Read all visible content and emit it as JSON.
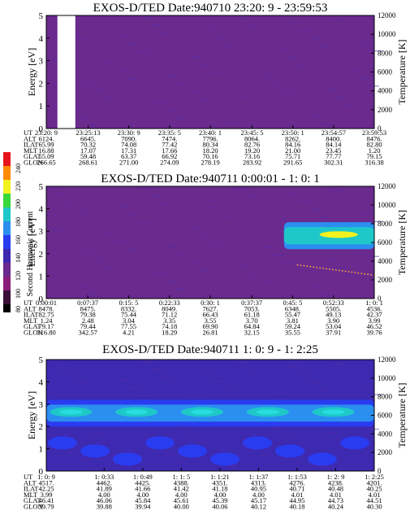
{
  "colorbar": {
    "label": "Second Harmonic Current",
    "ticks": [
      "80",
      "100",
      "120",
      "140",
      "160",
      "180",
      "200",
      "220",
      "240"
    ]
  },
  "row_labels": [
    "UT",
    "ALT",
    "ILAT",
    "MLT",
    "GLAT",
    "GLON"
  ],
  "chart_data": [
    {
      "type": "heatmap",
      "title": "EXOS-D/TED   Date:940710  23:20: 9 - 23:59:53",
      "ylabel": "Energy [eV]",
      "ylabel_right": "Temperature [K]",
      "ylim": [
        0,
        5
      ],
      "ylim_right": [
        0,
        12000
      ],
      "yticks": [
        "0",
        "1",
        "2",
        "3",
        "4",
        "5"
      ],
      "yticks_right": [
        "0",
        "2000",
        "4000",
        "6000",
        "8000",
        "10000",
        "12000"
      ],
      "columns": [
        [
          "23:20: 9",
          "6124.",
          "65.99",
          "16.88",
          "55.09",
          "266.65"
        ],
        [
          "23:25:13",
          "6645.",
          "70.32",
          "17.07",
          "59.48",
          "268.61"
        ],
        [
          "23:30: 9",
          "7090.",
          "74.08",
          "17.31",
          "63.37",
          "271.00"
        ],
        [
          "23:35: 5",
          "7474.",
          "77.42",
          "17.66",
          "66.92",
          "274.09"
        ],
        [
          "23:40: 1",
          "7796.",
          "80.34",
          "18.20",
          "70.16",
          "278.19"
        ],
        [
          "23:45: 5",
          "8064.",
          "82.76",
          "19.20",
          "73.16",
          "283.92"
        ],
        [
          "23:50: 1",
          "8262.",
          "84.16",
          "21.00",
          "75.71",
          "291.65"
        ],
        [
          "23:54:57",
          "8400.",
          "84.14",
          "23.45",
          "77.77",
          "302.31"
        ],
        [
          "23:59:53",
          "8476.",
          "82.80",
          "1.20",
          "79.15",
          "316.38"
        ]
      ],
      "features": [
        {
          "kind": "background",
          "level": 0.16
        },
        {
          "kind": "data-gap",
          "start_ut": "23:21:30",
          "end_ut": "23:23:40"
        }
      ]
    },
    {
      "type": "heatmap",
      "title": "EXOS-D/TED   Date:940711  0:00:01 - 1: 0: 1",
      "ylabel": "Energy [eV]",
      "ylabel_right": "Temperature [K]",
      "ylim": [
        0,
        5
      ],
      "ylim_right": [
        0,
        12000
      ],
      "yticks": [
        "0",
        "1",
        "2",
        "3",
        "4",
        "5"
      ],
      "yticks_right": [
        "0",
        "2000",
        "4000",
        "6000",
        "8000",
        "10000",
        "12000"
      ],
      "columns": [
        [
          "0:00:01",
          "8478.",
          "82.75",
          "1.24",
          "79.17",
          "316.80"
        ],
        [
          "0:07:37",
          "8475.",
          "79.38",
          "2.48",
          "79.44",
          "342.57"
        ],
        [
          "0:15: 5",
          "8332.",
          "75.44",
          "3.04",
          "77.55",
          "4.21"
        ],
        [
          "0:22:33",
          "8049.",
          "71.12",
          "3.35",
          "74.18",
          "18.29"
        ],
        [
          "0:30: 1",
          "7627.",
          "66.43",
          "3.55",
          "69.90",
          "26.81"
        ],
        [
          "0:37:37",
          "7053.",
          "61.18",
          "3.70",
          "64.84",
          "32.15"
        ],
        [
          "0:45: 5",
          "6348.",
          "55.47",
          "3.81",
          "59.24",
          "35.55"
        ],
        [
          "0:52:33",
          "5505.",
          "49.13",
          "3.90",
          "53.04",
          "37.91"
        ],
        [
          "1: 0: 1",
          "4536.",
          "42.37",
          "3.99",
          "46.52",
          "39.76"
        ]
      ],
      "features": [
        {
          "kind": "background",
          "level": 0.16
        },
        {
          "kind": "band",
          "start_ut": "0:43:30",
          "end_ut": "1: 0: 1",
          "energy_min": 2.2,
          "energy_max": 3.4,
          "level": 0.55
        },
        {
          "kind": "band-core",
          "start_ut": "0:50:00",
          "end_ut": "0:57:00",
          "energy_min": 2.7,
          "energy_max": 3.0,
          "level": 0.72
        },
        {
          "kind": "temperature-trace",
          "start_ut": "0:46:00",
          "end_ut": "1: 0: 1",
          "temp_start": 3600,
          "temp_end": 2500
        }
      ]
    },
    {
      "type": "heatmap",
      "title": "EXOS-D/TED   Date:940711  1: 0: 9 - 1: 2:25",
      "ylabel": "Energy [eV]",
      "ylabel_right": "Temperature [K]",
      "ylim": [
        0,
        5
      ],
      "ylim_right": [
        0,
        12000
      ],
      "yticks": [
        "0",
        "1",
        "2",
        "3",
        "4",
        "5"
      ],
      "yticks_right": [
        "0",
        "2000",
        "4000",
        "6000",
        "8000",
        "10000",
        "12000"
      ],
      "columns": [
        [
          "1: 0: 9",
          "4517.",
          "42.25",
          "3.99",
          "46.41",
          "39.79"
        ],
        [
          "1: 0:33",
          "4462.",
          "41.89",
          "4.00",
          "46.06",
          "39.88"
        ],
        [
          "1: 0:49",
          "4425.",
          "41.66",
          "4.00",
          "45.84",
          "39.94"
        ],
        [
          "1: 1: 5",
          "4388.",
          "41.42",
          "4.00",
          "45.61",
          "40.00"
        ],
        [
          "1: 1:21",
          "4351.",
          "41.18",
          "4.00",
          "45.39",
          "40.06"
        ],
        [
          "1: 1:37",
          "4313.",
          "40.95",
          "4.00",
          "45.17",
          "40.12"
        ],
        [
          "1: 1:53",
          "4276.",
          "40.71",
          "4.01",
          "44.95",
          "40.18"
        ],
        [
          "1: 2: 9",
          "4238.",
          "40.48",
          "4.01",
          "44.73",
          "40.24"
        ],
        [
          "1: 2:25",
          "4201.",
          "40.25",
          "4.01",
          "44.51",
          "40.30"
        ]
      ],
      "features": [
        {
          "kind": "background",
          "level": 0.25
        },
        {
          "kind": "band",
          "energy_min": 2.0,
          "energy_max": 3.2,
          "level": 0.45
        },
        {
          "kind": "band-peaks",
          "energy_center": 2.65,
          "count": 5,
          "level": 0.62
        },
        {
          "kind": "low-energy-patches",
          "energy_max": 1.7,
          "level": 0.32
        }
      ]
    }
  ]
}
